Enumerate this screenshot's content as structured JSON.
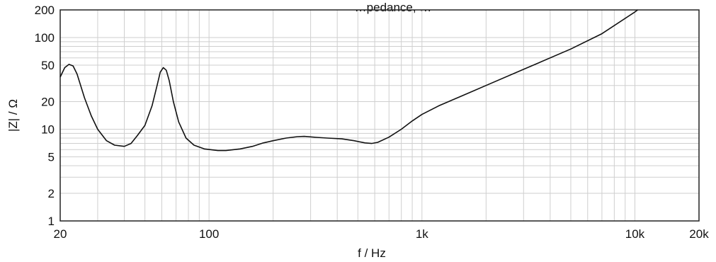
{
  "chart_data": {
    "type": "line",
    "title": "…pedance, …",
    "xlabel": "f / Hz",
    "ylabel": "|Z| / Ω",
    "x_scale": "log",
    "y_scale": "log",
    "xlim": [
      20,
      20000
    ],
    "ylim": [
      1,
      200
    ],
    "x_ticks": [
      {
        "value": 20,
        "label": "20"
      },
      {
        "value": 100,
        "label": "100"
      },
      {
        "value": 1000,
        "label": "1k"
      },
      {
        "value": 10000,
        "label": "10k"
      },
      {
        "value": 20000,
        "label": "20k"
      }
    ],
    "y_ticks": [
      {
        "value": 1,
        "label": "1"
      },
      {
        "value": 2,
        "label": "2"
      },
      {
        "value": 5,
        "label": "5"
      },
      {
        "value": 10,
        "label": "10"
      },
      {
        "value": 20,
        "label": "20"
      },
      {
        "value": 50,
        "label": "50"
      },
      {
        "value": 100,
        "label": "100"
      },
      {
        "value": 200,
        "label": "200"
      }
    ],
    "grid": true,
    "series": [
      {
        "color": "#111111",
        "points": [
          [
            20,
            37
          ],
          [
            21,
            47
          ],
          [
            22,
            51
          ],
          [
            23,
            49
          ],
          [
            24,
            40
          ],
          [
            26,
            22
          ],
          [
            28,
            14
          ],
          [
            30,
            10
          ],
          [
            33,
            7.5
          ],
          [
            36,
            6.7
          ],
          [
            40,
            6.5
          ],
          [
            43,
            7
          ],
          [
            46,
            8.5
          ],
          [
            50,
            11
          ],
          [
            54,
            18
          ],
          [
            57,
            30
          ],
          [
            59,
            42
          ],
          [
            61,
            47
          ],
          [
            63,
            44
          ],
          [
            65,
            34
          ],
          [
            68,
            20
          ],
          [
            72,
            12
          ],
          [
            78,
            8
          ],
          [
            85,
            6.7
          ],
          [
            95,
            6.1
          ],
          [
            110,
            5.85
          ],
          [
            120,
            5.85
          ],
          [
            140,
            6.1
          ],
          [
            160,
            6.5
          ],
          [
            180,
            7.1
          ],
          [
            200,
            7.5
          ],
          [
            230,
            8
          ],
          [
            260,
            8.3
          ],
          [
            280,
            8.35
          ],
          [
            320,
            8.15
          ],
          [
            360,
            8
          ],
          [
            420,
            7.85
          ],
          [
            480,
            7.5
          ],
          [
            540,
            7.1
          ],
          [
            580,
            7
          ],
          [
            620,
            7.2
          ],
          [
            700,
            8.2
          ],
          [
            800,
            10
          ],
          [
            900,
            12.3
          ],
          [
            1000,
            14.5
          ],
          [
            1200,
            18
          ],
          [
            1500,
            22.5
          ],
          [
            2000,
            30
          ],
          [
            3000,
            45
          ],
          [
            5000,
            75
          ],
          [
            7000,
            110
          ],
          [
            10000,
            190
          ],
          [
            10300,
            200
          ]
        ]
      }
    ]
  }
}
